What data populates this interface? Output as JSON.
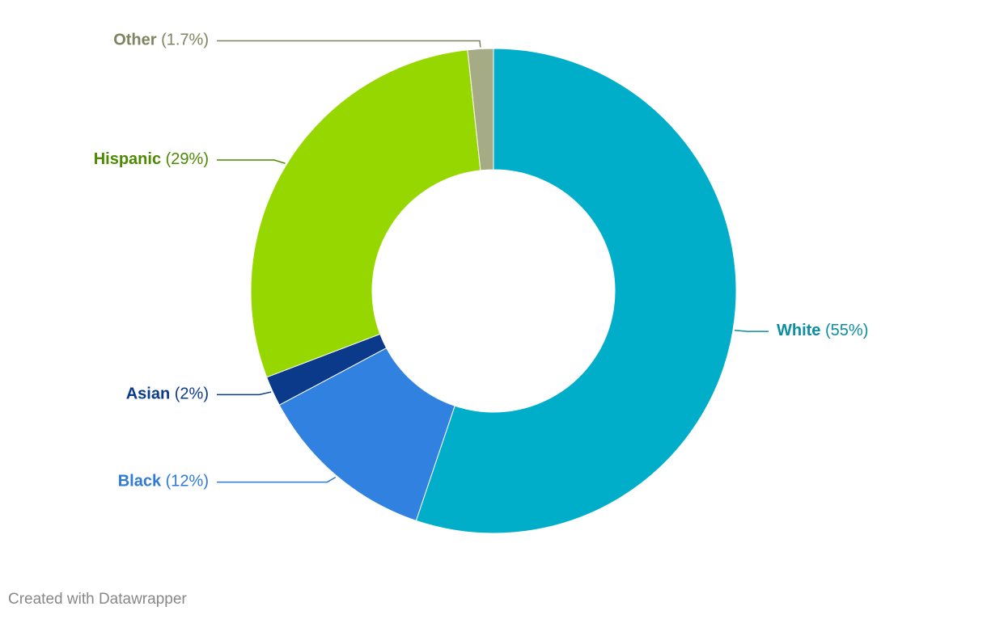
{
  "chart_data": {
    "type": "donut",
    "categories": [
      "White",
      "Black",
      "Asian",
      "Hispanic",
      "Other"
    ],
    "values": [
      55,
      12,
      2,
      29,
      1.7
    ],
    "value_labels": [
      "(55%)",
      "(12%)",
      "(2%)",
      "(29%)",
      "(1.7%)"
    ],
    "colors": [
      "#00aec9",
      "#3182e0",
      "#0b3a8a",
      "#97d700",
      "#a5ab85"
    ],
    "label_colors": [
      "#0a8fa2",
      "#2f7ad6",
      "#0b3a8a",
      "#4c8a00",
      "#7d8460"
    ]
  },
  "credit": "Created with Datawrapper"
}
